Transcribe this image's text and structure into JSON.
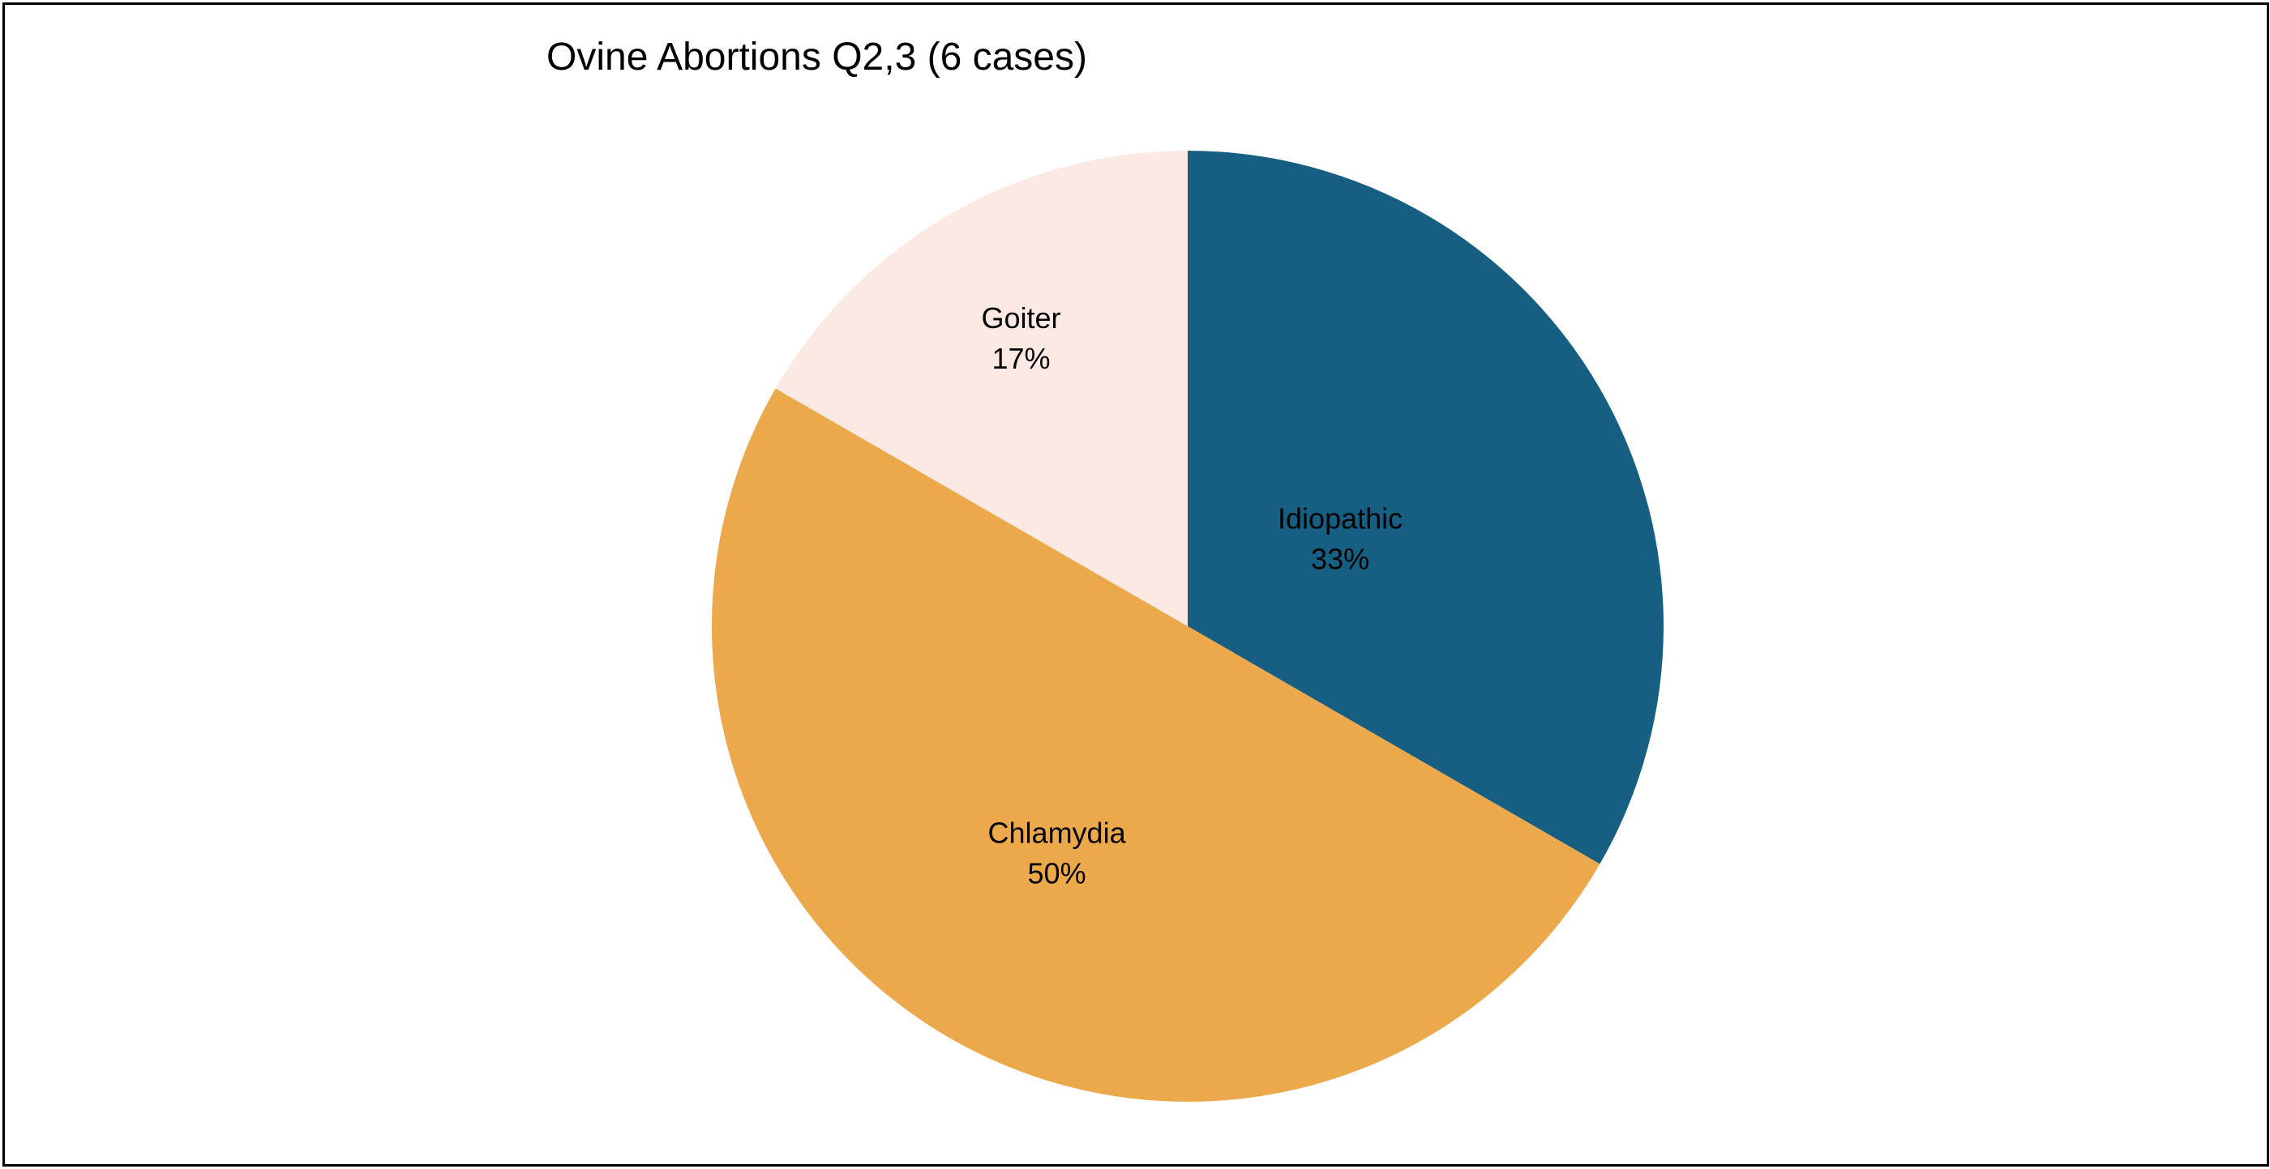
{
  "chart_data": {
    "type": "pie",
    "title": "Ovine Abortions Q2,3 (6 cases)",
    "categories": [
      "Idiopathic",
      "Chlamydia",
      "Goiter"
    ],
    "values": [
      2,
      3,
      1
    ],
    "percent_labels": [
      "33%",
      "50%",
      "17%"
    ],
    "colors": [
      "#175F82",
      "#ECA94B",
      "#FDE9E4"
    ],
    "start_angle_deg": 0,
    "direction": "clockwise",
    "legend": "none"
  }
}
